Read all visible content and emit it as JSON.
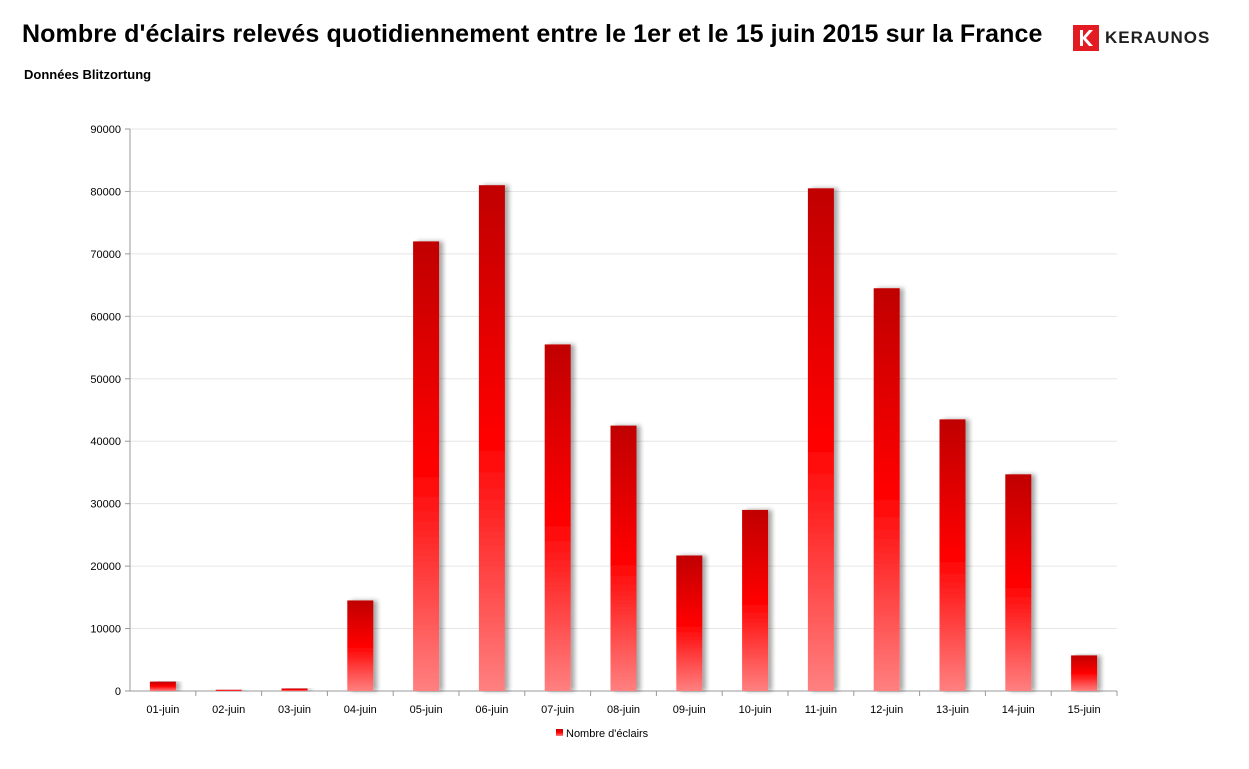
{
  "header": {
    "title": "Nombre d'éclairs relevés quotidiennement entre le 1er et le 15 juin 2015 sur la France",
    "subtitle": "Données Blitzortung",
    "logo_text": "KERAUNOS"
  },
  "colors": {
    "bar_top": "#c00000",
    "bar_mid": "#ff0000",
    "bar_bottom": "#ff8080",
    "logo_red": "#e31b23",
    "grid": "#e6e6e6"
  },
  "chart_data": {
    "type": "bar",
    "title": "Nombre d'éclairs relevés quotidiennement entre le 1er et le 15 juin 2015 sur la France",
    "xlabel": "",
    "ylabel": "",
    "categories": [
      "01-juin",
      "02-juin",
      "03-juin",
      "04-juin",
      "05-juin",
      "06-juin",
      "07-juin",
      "08-juin",
      "09-juin",
      "10-juin",
      "11-juin",
      "12-juin",
      "13-juin",
      "14-juin",
      "15-juin"
    ],
    "series": [
      {
        "name": "Nombre d'éclairs",
        "values": [
          1500,
          200,
          400,
          14500,
          72000,
          81000,
          55500,
          42500,
          21700,
          29000,
          80500,
          64500,
          43500,
          34700,
          5700
        ]
      }
    ],
    "ylim": [
      0,
      90000
    ],
    "yticks": [
      "0",
      "10000",
      "20000",
      "30000",
      "40000",
      "50000",
      "60000",
      "70000",
      "80000",
      "90000"
    ],
    "grid": true,
    "legend_position": "bottom"
  }
}
